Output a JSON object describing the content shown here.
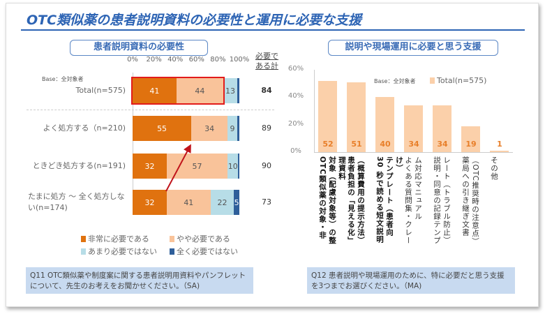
{
  "title": "OTC類似薬の患者説明資料の必要性と運用に必要な支援",
  "colors": {
    "very": "#e0720f",
    "some": "#f9c39a",
    "notmuch": "#b7dde7",
    "none": "#2f5f9a",
    "highlight": "#e21b1b",
    "right_bar": "#fbd0aa",
    "title": "#2d64b4"
  },
  "left": {
    "heading": "患者説明資料の必要性",
    "ticks": [
      "0%",
      "20%",
      "40%",
      "60%",
      "80%",
      "100%"
    ],
    "total_header": "必要である計",
    "base_note": "Base：全対象者",
    "rows": [
      {
        "label": "Total(n=575)",
        "values": [
          41,
          44,
          13,
          2
        ],
        "labels": [
          "41",
          "44",
          "13",
          ""
        ],
        "total": "84"
      },
      {
        "label": "よく処方する（n=210)",
        "values": [
          55,
          34,
          9,
          2
        ],
        "labels": [
          "55",
          "34",
          "9",
          ""
        ],
        "total": "89"
      },
      {
        "label": "ときどき処方する(n=191)",
        "values": [
          32,
          57,
          10,
          1
        ],
        "labels": [
          "32",
          "57",
          "10",
          ""
        ],
        "total": "90"
      },
      {
        "label": "たまに処方 ～ 全く処方しない(n=174)",
        "values": [
          32,
          41,
          22,
          5
        ],
        "labels": [
          "32",
          "41",
          "22",
          "5"
        ],
        "total": "73"
      }
    ],
    "legend": [
      "非常に必要である",
      "やや必要である",
      "あまり必要ではない",
      "全く必要ではない"
    ],
    "question": "Q11 OTC類似薬や制度案に関する患者説明用資料やパンフレットについて、先生のお考えをお聞かせください。（SA)"
  },
  "chart_data": {
    "type": "bar",
    "title": "説明や現場運用に必要と思う支援",
    "ylim": [
      0,
      60
    ],
    "yticks": [
      "0%",
      "20%",
      "40%",
      "60%"
    ],
    "legend": "Total(n=575)",
    "base_note": "Base：全対象者",
    "categories": [
      "OTC類似薬の対象・非対象（配慮対象等）の整理資料",
      "患者負担の「見える化」（概算費用の提示方法）",
      "30 秒で読める短文説明テンプレート（患者向け）",
      "よくある質問集・クレーム対応マニュアル",
      "説明・同意の記録テンプレート（トラブル防止）",
      "薬局への引き継ぎ文書（OTC推奨時の注意点）",
      "その他"
    ],
    "values": [
      52,
      51,
      40,
      34,
      34,
      19,
      1
    ],
    "bold": [
      true,
      true,
      true,
      false,
      false,
      false,
      false
    ]
  },
  "right": {
    "question": "Q12 患者説明や現場運用のために、特に必要だと思う支援を3つまでお選びください。（MA)"
  }
}
